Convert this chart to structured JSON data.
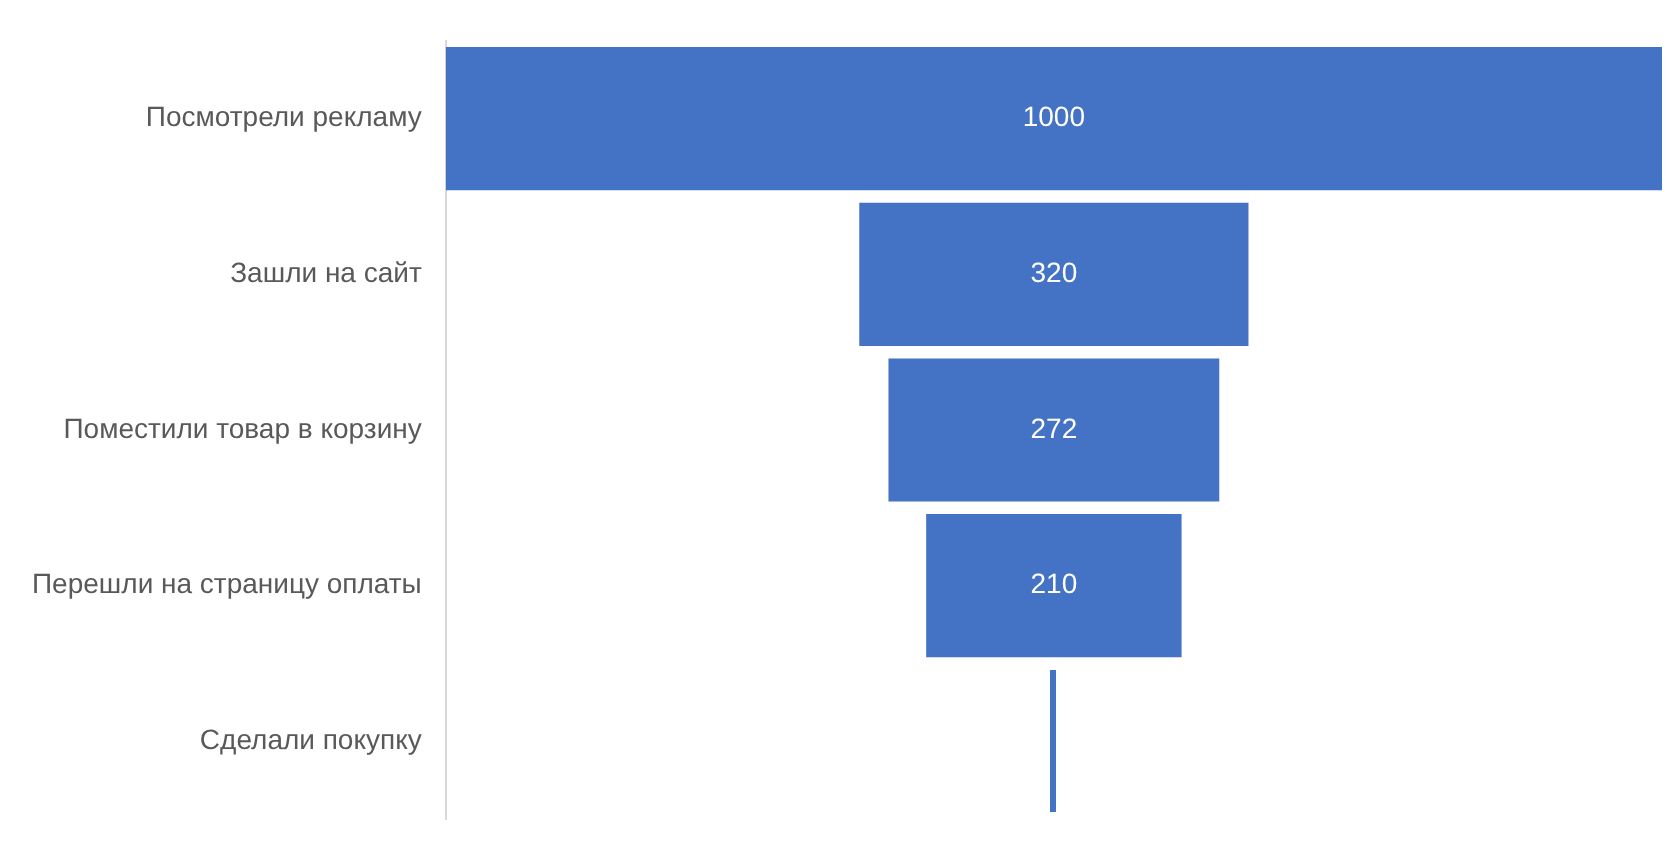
{
  "chart_data": {
    "type": "other",
    "categories": [
      "Посмотрели рекламу",
      "Зашли на сайт",
      "Поместили товар в корзину",
      "Перешли на страницу оплаты",
      "Сделали покупку"
    ],
    "values": [
      1000,
      320,
      272,
      210,
      null
    ],
    "value_labels": [
      "1000",
      "320",
      "272",
      "210",
      null
    ],
    "color": "#4472c4"
  }
}
